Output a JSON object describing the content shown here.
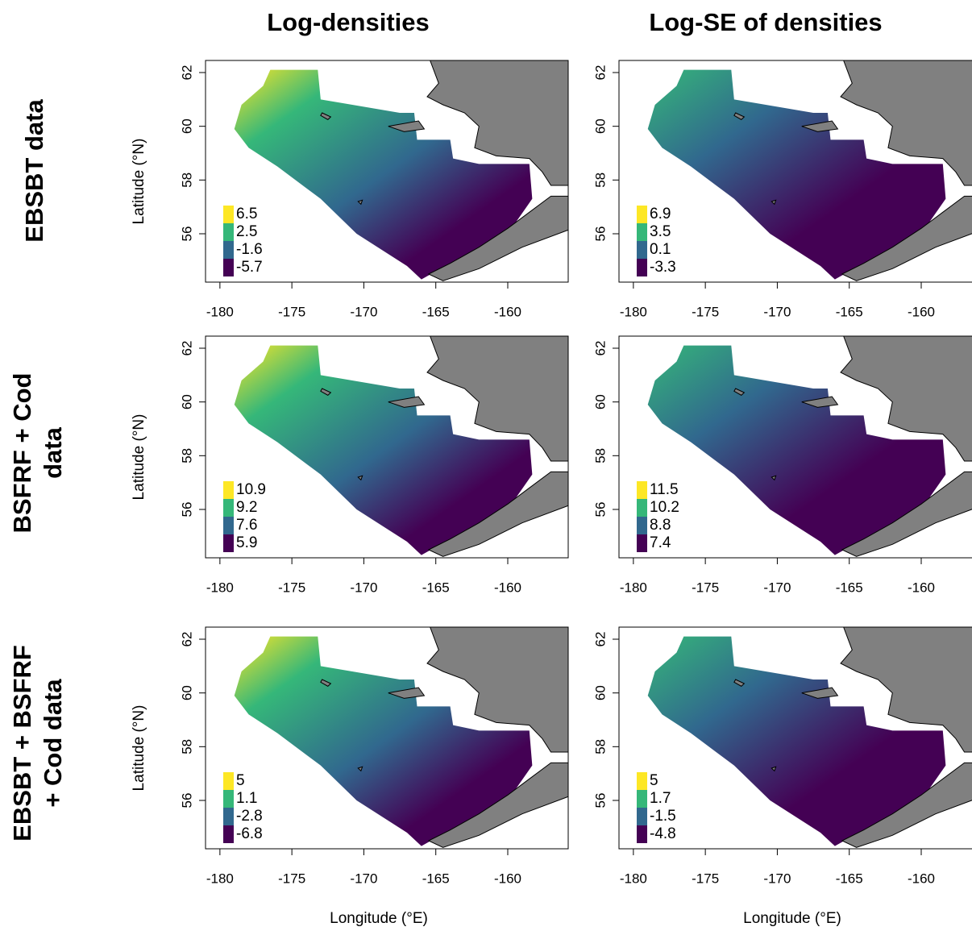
{
  "column_titles": [
    "Log-densities",
    "Log-SE of densities"
  ],
  "row_labels": [
    [
      "EBSBT data"
    ],
    [
      "BSFRF + Cod",
      "data"
    ],
    [
      "EBSBT + BSFRF",
      "+ Cod data"
    ]
  ],
  "axes": {
    "x_label": "Longitude (°E)",
    "y_label": "Latitude (°N)",
    "xlim": [
      -181,
      -155.8
    ],
    "ylim": [
      54.2,
      62.45
    ],
    "xticks": [
      -180,
      -175,
      -170,
      -165,
      -160
    ],
    "yticks": [
      56,
      58,
      60,
      62
    ]
  },
  "colorbar": [
    "#fde725",
    "#35b779",
    "#31688e",
    "#440154"
  ],
  "panels": [
    [
      [
        6.5,
        2.5,
        -1.6,
        -5.7
      ],
      [
        6.9,
        3.5,
        0.1,
        -3.3
      ]
    ],
    [
      [
        10.9,
        9.2,
        7.6,
        5.9
      ],
      [
        11.5,
        10.2,
        8.8,
        7.4
      ]
    ],
    [
      [
        5,
        1.1,
        -2.8,
        -6.8
      ],
      [
        5,
        1.7,
        -1.5,
        -4.8
      ]
    ]
  ]
}
